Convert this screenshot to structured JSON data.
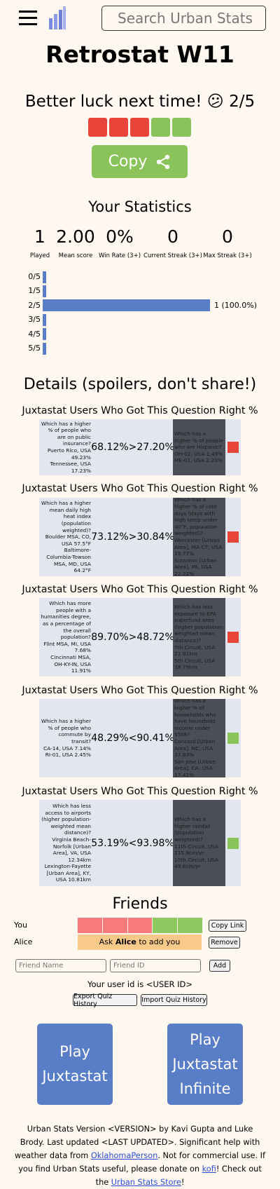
{
  "header": {
    "search_placeholder": "Search Urban Stats"
  },
  "title": "Retrostat W11",
  "result_message": "Better luck next time! 😕 2/5",
  "copy_button": "Copy",
  "colors": {
    "correct": "#8ac35a",
    "incorrect": "#e8443a",
    "friend_correct": "#8dc95f",
    "friend_incorrect": "#f77b7b",
    "bar": "#5a7dc8"
  },
  "statistics": {
    "title": "Your Statistics",
    "items": [
      {
        "value": "1",
        "label": "Played"
      },
      {
        "value": "2.00",
        "label": "Mean score"
      },
      {
        "value": "0%",
        "label": "Win Rate (3+)"
      },
      {
        "value": "0",
        "label": "Current Streak (3+)"
      },
      {
        "value": "0",
        "label": "Max Streak (3+)"
      }
    ]
  },
  "histogram": {
    "rows": [
      {
        "label": "0/5",
        "count": 0
      },
      {
        "label": "1/5",
        "count": 0
      },
      {
        "label": "2/5",
        "count": 1,
        "text": "1 (100.0%)"
      },
      {
        "label": "3/5",
        "count": 0
      },
      {
        "label": "4/5",
        "count": 0
      },
      {
        "label": "5/5",
        "count": 0
      }
    ]
  },
  "details": {
    "title": "Details (spoilers, don't share!)",
    "questions": [
      {
        "heading": "Juxtastat Users Who Got This Question Right %",
        "left": {
          "question": "Which has a higher % of people who are on public insurance?",
          "options": [
            {
              "name": "Puerto Rico, USA",
              "value": "49.23%"
            },
            {
              "name": "Tennessee, USA",
              "value": "17.23%"
            }
          ]
        },
        "pct_left": "68.12%",
        "op": ">",
        "pct_right": "27.20%",
        "right": {
          "question": "Which has a higher % of people who are Hispanic?",
          "options": [
            {
              "name": "OH-02, USA",
              "value": "1.49%"
            },
            {
              "name": "ME-01, USA",
              "value": "2.20%"
            }
          ]
        },
        "correct": false
      },
      {
        "heading": "Juxtastat Users Who Got This Question Right %",
        "left": {
          "question": "Which has a higher mean daily high heat index (population weighted)?",
          "options": [
            {
              "name": "Boulder MSA, CO, USA",
              "value": "57.5°F"
            },
            {
              "name": "Baltimore-Columbia-Towson MSA, MD, USA",
              "value": "64.2°F"
            }
          ]
        },
        "pct_left": "73.12%",
        "op": ">",
        "pct_right": "30.84%",
        "right": {
          "question": "Which has a higher % of cold days (days with high temp under 40°F, population weighted)?",
          "options": [
            {
              "name": "Worcester [Urban Area], MA-CT, USA",
              "value": "19.77%"
            },
            {
              "name": "Scranton [Urban Area], PA, USA",
              "value": "22.22%"
            }
          ]
        },
        "correct": false
      },
      {
        "heading": "Juxtastat Users Who Got This Question Right %",
        "left": {
          "question": "Which has more people with a humanities degree, as a percentage of the overall population?",
          "options": [
            {
              "name": "Flint MSA, MI, USA",
              "value": "7.68%"
            },
            {
              "name": "Cincinnati MSA, OH-KY-IN, USA",
              "value": "11.91%"
            }
          ]
        },
        "pct_left": "89.70%",
        "op": ">",
        "pct_right": "48.72%",
        "right": {
          "question": "Which has less exposure to EPA superfund sites (higher population-weighted mean distance)?",
          "options": [
            {
              "name": "7th Circuit, USA",
              "value": "21.91km"
            },
            {
              "name": "5th Circuit, USA",
              "value": "38.79km"
            }
          ]
        },
        "correct": false
      },
      {
        "heading": "Juxtastat Users Who Got This Question Right %",
        "left": {
          "question": "Which has a higher % of people who commute by transit?",
          "options": [
            {
              "name": "CA-14, USA",
              "value": "7.14%"
            },
            {
              "name": "RI-01, USA",
              "value": "2.45%"
            }
          ]
        },
        "pct_left": "48.29%",
        "op": "<",
        "pct_right": "90.41%",
        "right": {
          "question": "Which has a higher % of households who have household income under $50k?",
          "options": [
            {
              "name": "Concord [Urban Area], NC, USA",
              "value": "37.83%"
            },
            {
              "name": "San Jose [Urban Area], CA, USA",
              "value": "17.41%"
            }
          ]
        },
        "correct": true
      },
      {
        "heading": "Juxtastat Users Who Got This Question Right %",
        "left": {
          "question": "Which has less access to airports (higher population-weighted mean distance)?",
          "options": [
            {
              "name": "Virginia Beach-Norfolk [Urban Area], VA, USA",
              "value": "12.34km"
            },
            {
              "name": "Lexington-Fayette [Urban Area], KY, USA",
              "value": "10.81km"
            }
          ]
        },
        "pct_left": "53.19%",
        "op": "<",
        "pct_right": "93.98%",
        "right": {
          "question": "Which has a higher rainfall (population weighted)?",
          "options": [
            {
              "name": "11th Circuit, USA",
              "value": "115.9cm/yr"
            },
            {
              "name": "10th Circuit, USA",
              "value": "49.6cm/yr"
            }
          ]
        },
        "correct": true
      }
    ]
  },
  "friends": {
    "title": "Friends",
    "you_label": "You",
    "copy_link": "Copy Link",
    "friend_name": "Alice",
    "prompt_before": "Ask",
    "prompt_after": "to add you",
    "remove": "Remove",
    "name_placeholder": "Friend Name",
    "id_placeholder": "Friend ID",
    "add": "Add"
  },
  "user_id_text": "Your user id is <USER ID>",
  "export_button": "Export Quiz History",
  "import_button": "Import Quiz History",
  "play_buttons": [
    "Play Juxtastat",
    "Play Juxtastat Infinite"
  ],
  "footer": {
    "parts": [
      {
        "text": "Urban Stats Version <VERSION> by Kavi Gupta and Luke Brody. Last updated <LAST UPDATED>. Significant help with weather data from "
      },
      {
        "link": "OklahomaPerson"
      },
      {
        "text": ". Not for commercial use. If you find Urban Stats useful, please donate on "
      },
      {
        "link": "kofi"
      },
      {
        "text": "! Check out the "
      },
      {
        "link": "Urban Stats Store"
      },
      {
        "text": "!"
      }
    ]
  }
}
